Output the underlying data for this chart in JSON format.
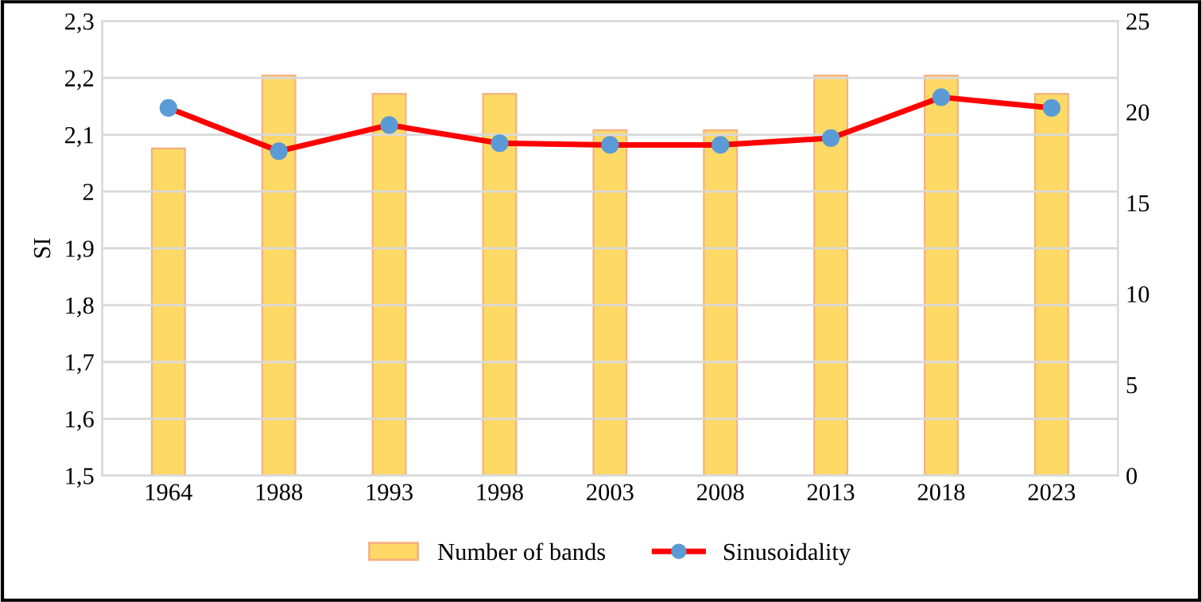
{
  "chart_data": {
    "type": "bar",
    "ylabel": "SI",
    "categories": [
      "1964",
      "1988",
      "1993",
      "1998",
      "2003",
      "2008",
      "2013",
      "2018",
      "2023"
    ],
    "series": [
      {
        "name": "Number of bands",
        "axis": "y2",
        "color": "#ffd966",
        "values": [
          18,
          22,
          21,
          21,
          19,
          19,
          22,
          22,
          21
        ]
      },
      {
        "name": "Sinusoidality",
        "type": "line",
        "axis": "y",
        "color": "#ff0000",
        "values": [
          2.147,
          2.071,
          2.117,
          2.085,
          2.082,
          2.082,
          2.094,
          2.166,
          2.147
        ]
      }
    ],
    "ylim": [
      1.5,
      2.3
    ],
    "yticks": [
      {
        "value": 1.5,
        "label": "1,5"
      },
      {
        "value": 1.6,
        "label": "1,6"
      },
      {
        "value": 1.7,
        "label": "1,7"
      },
      {
        "value": 1.8,
        "label": "1,8"
      },
      {
        "value": 1.9,
        "label": "1,9"
      },
      {
        "value": 2,
        "label": "2"
      },
      {
        "value": 2.1,
        "label": "2,1"
      },
      {
        "value": 2.2,
        "label": "2,2"
      },
      {
        "value": 2.3,
        "label": "2,3"
      }
    ],
    "y2lim": [
      0,
      25
    ],
    "y2ticks": [
      0,
      5,
      10,
      15,
      20,
      25
    ],
    "grid": "y",
    "legend": "bottom",
    "marker": "circle",
    "line_style": "solid"
  }
}
